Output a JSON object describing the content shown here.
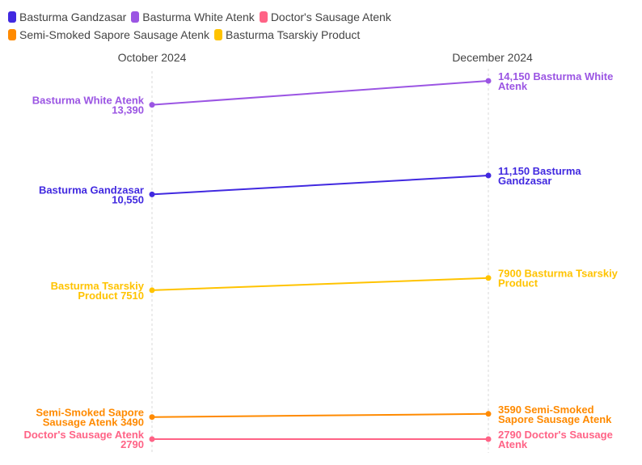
{
  "chart_data": {
    "type": "slope",
    "periods": [
      "October 2024",
      "December 2024"
    ],
    "legend_placement": "top-left",
    "series": [
      {
        "name": "Basturma Gandzasar",
        "color": "#4129e0",
        "values": [
          10550,
          11150
        ],
        "left_label": [
          "Basturma Gandzasar",
          "10,550"
        ],
        "right_label": [
          "11,150 Basturma",
          "Gandzasar"
        ]
      },
      {
        "name": "Basturma White Atenk",
        "color": "#9b55e3",
        "values": [
          13390,
          14150
        ],
        "left_label": [
          "Basturma White Atenk",
          "13,390"
        ],
        "right_label": [
          "14,150 Basturma White",
          "Atenk"
        ]
      },
      {
        "name": "Doctor's Sausage Atenk",
        "color": "#ff6386",
        "values": [
          2790,
          2790
        ],
        "left_label": [
          "Doctor's Sausage Atenk",
          "2790"
        ],
        "right_label": [
          "2790 Doctor's Sausage",
          "Atenk"
        ]
      },
      {
        "name": "Semi-Smoked Sapore Sausage Atenk",
        "color": "#ff8a00",
        "values": [
          3490,
          3590
        ],
        "left_label": [
          "Semi-Smoked Sapore",
          "Sausage Atenk 3490"
        ],
        "right_label": [
          "3590 Semi-Smoked",
          "Sapore Sausage Atenk"
        ]
      },
      {
        "name": "Basturma Tsarskiy Product",
        "color": "#ffc300",
        "values": [
          7510,
          7900
        ],
        "left_label": [
          "Basturma Tsarskiy",
          "Product 7510"
        ],
        "right_label": [
          "7900 Basturma Tsarskiy",
          "Product"
        ]
      }
    ]
  }
}
